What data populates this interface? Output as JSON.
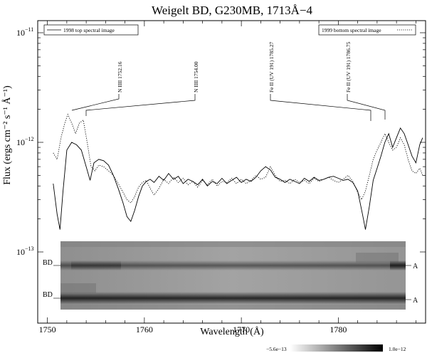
{
  "chart_data": {
    "type": "line",
    "title": "Weigelt BD, G230MB, 1713Å−4",
    "xlabel": "Wavelength (Å)",
    "ylabel": "Flux (ergs cm⁻² s⁻¹ Å⁻¹)",
    "xlim": [
      1749,
      1789
    ],
    "ylim": [
      1e-13,
      1.2e-11
    ],
    "yscale": "log",
    "grid": false,
    "xticks": [
      1750,
      1760,
      1770,
      1780
    ],
    "xtick_labels": [
      "1750",
      "1760",
      "1770",
      "1780"
    ],
    "ytick_labels": [
      {
        "value": 1e-11,
        "mantissa": "10",
        "exp": "−11"
      },
      {
        "value": 1e-12,
        "mantissa": "10",
        "exp": "−12"
      },
      {
        "value": 1e-13,
        "mantissa": "10",
        "exp": "−13"
      }
    ],
    "legend": [
      {
        "label": "1998 top spectral image",
        "style": "solid",
        "position": "top-left"
      },
      {
        "label": "1999 bottom spectral image",
        "style": "dotted",
        "position": "top-right"
      }
    ],
    "series": [
      {
        "name": "1998 top spectral image",
        "style": "solid",
        "x": [
          1750.6,
          1751.0,
          1751.3,
          1751.6,
          1752.0,
          1752.5,
          1753.0,
          1753.5,
          1754.0,
          1754.4,
          1754.8,
          1755.3,
          1755.8,
          1756.3,
          1756.8,
          1757.3,
          1757.8,
          1758.2,
          1758.6,
          1759.0,
          1759.4,
          1759.8,
          1760.2,
          1760.6,
          1761.0,
          1761.5,
          1762.0,
          1762.5,
          1763.0,
          1763.5,
          1764.0,
          1764.5,
          1765.0,
          1765.5,
          1766.0,
          1766.5,
          1767.0,
          1767.5,
          1768.0,
          1768.5,
          1769.0,
          1769.5,
          1770.0,
          1770.5,
          1771.0,
          1771.5,
          1772.0,
          1772.5,
          1773.0,
          1773.5,
          1774.0,
          1774.5,
          1775.0,
          1775.5,
          1776.0,
          1776.5,
          1777.0,
          1777.5,
          1778.0,
          1778.5,
          1779.0,
          1779.5,
          1780.0,
          1780.5,
          1781.0,
          1781.5,
          1782.0,
          1782.5,
          1782.8,
          1783.2,
          1783.6,
          1784.0,
          1784.4,
          1784.8,
          1785.2,
          1785.6,
          1786.0,
          1786.4,
          1786.8,
          1787.2,
          1787.6,
          1788.0,
          1788.4,
          1788.7
        ],
        "y": [
          4.2e-13,
          2.2e-13,
          1.6e-13,
          3.5e-13,
          8.5e-13,
          1e-12,
          9.5e-13,
          8.5e-13,
          6e-13,
          4.5e-13,
          6.5e-13,
          7e-13,
          6.8e-13,
          6.2e-13,
          5e-13,
          3.8e-13,
          2.8e-13,
          2.1e-13,
          1.9e-13,
          2.4e-13,
          3.2e-13,
          4e-13,
          4.4e-13,
          4.6e-13,
          4.3e-13,
          4.9e-13,
          4.5e-13,
          5.2e-13,
          4.6e-13,
          4.9e-13,
          4.2e-13,
          4.6e-13,
          4.4e-13,
          4.1e-13,
          4.6e-13,
          4e-13,
          4.4e-13,
          4.2e-13,
          4.7e-13,
          4.2e-13,
          4.5e-13,
          4.8e-13,
          4.3e-13,
          4.6e-13,
          4.4e-13,
          4.8e-13,
          5.5e-13,
          6e-13,
          5.6e-13,
          4.8e-13,
          4.6e-13,
          4.3e-13,
          4.6e-13,
          4.4e-13,
          4.2e-13,
          4.7e-13,
          4.4e-13,
          4.8e-13,
          4.5e-13,
          4.6e-13,
          4.8e-13,
          4.9e-13,
          4.7e-13,
          4.5e-13,
          4.6e-13,
          4.3e-13,
          3.6e-13,
          2.2e-13,
          1.6e-13,
          2.6e-13,
          4.5e-13,
          5.8e-13,
          7.5e-13,
          1e-12,
          1.2e-12,
          9e-13,
          1.1e-12,
          1.35e-12,
          1.2e-12,
          9.5e-13,
          7.5e-13,
          6.5e-13,
          9.5e-13,
          1.1e-12
        ]
      },
      {
        "name": "1999 bottom spectral image",
        "style": "dotted",
        "x": [
          1750.6,
          1751.0,
          1751.4,
          1751.8,
          1752.1,
          1752.5,
          1752.9,
          1753.3,
          1753.7,
          1754.1,
          1754.5,
          1754.9,
          1755.3,
          1755.8,
          1756.3,
          1756.8,
          1757.3,
          1757.8,
          1758.2,
          1758.6,
          1759.0,
          1759.4,
          1759.8,
          1760.2,
          1760.6,
          1761.0,
          1761.5,
          1762.0,
          1762.5,
          1763.0,
          1763.5,
          1764.0,
          1764.5,
          1765.0,
          1765.5,
          1766.0,
          1766.5,
          1767.0,
          1767.5,
          1768.0,
          1768.5,
          1769.0,
          1769.5,
          1770.0,
          1770.5,
          1771.0,
          1771.5,
          1772.0,
          1772.5,
          1773.0,
          1773.5,
          1774.0,
          1774.5,
          1775.0,
          1775.5,
          1776.0,
          1776.5,
          1777.0,
          1777.5,
          1778.0,
          1778.5,
          1779.0,
          1779.5,
          1780.0,
          1780.5,
          1781.0,
          1781.5,
          1782.0,
          1782.4,
          1782.8,
          1783.2,
          1783.6,
          1784.0,
          1784.4,
          1784.8,
          1785.2,
          1785.6,
          1786.0,
          1786.4,
          1786.8,
          1787.2,
          1787.6,
          1788.0,
          1788.4,
          1788.7
        ],
        "y": [
          8e-13,
          7e-13,
          1.1e-12,
          1.5e-12,
          1.8e-12,
          1.5e-12,
          1.2e-12,
          1.5e-12,
          1.6e-12,
          1e-12,
          6e-13,
          5.5e-13,
          6.2e-13,
          6e-13,
          5.5e-13,
          5e-13,
          4.2e-13,
          3.5e-13,
          3e-13,
          2.8e-13,
          3.2e-13,
          3.9e-13,
          4.3e-13,
          4.5e-13,
          3.8e-13,
          3.3e-13,
          3.8e-13,
          4.6e-13,
          4.2e-13,
          4.8e-13,
          4.3e-13,
          4.7e-13,
          4.1e-13,
          4.4e-13,
          3.9e-13,
          4.5e-13,
          4.1e-13,
          4.6e-13,
          4e-13,
          4.4e-13,
          4.3e-13,
          4.7e-13,
          4.2e-13,
          4.6e-13,
          4.2e-13,
          4.5e-13,
          5e-13,
          4.6e-13,
          4.8e-13,
          6e-13,
          5e-13,
          4.4e-13,
          4.5e-13,
          4.2e-13,
          4.6e-13,
          4.3e-13,
          4.5e-13,
          4.2e-13,
          4.7e-13,
          4.4e-13,
          4.6e-13,
          4.8e-13,
          4.5e-13,
          4.3e-13,
          4.6e-13,
          5e-13,
          4.4e-13,
          3.5e-13,
          3e-13,
          3.6e-13,
          5e-13,
          7e-13,
          8.5e-13,
          1e-12,
          1.2e-12,
          1e-12,
          8.5e-13,
          9e-13,
          1.1e-12,
          9.5e-13,
          7e-13,
          5.5e-13,
          5.2e-13,
          5.8e-13,
          5e-13
        ]
      }
    ],
    "annotations": [
      {
        "label": "N IIII 1752.16",
        "x": 1752.16,
        "y": 1.8e-12
      },
      {
        "label": "N IIII 1754.00",
        "x": 1754.0,
        "y": 1.6e-12
      },
      {
        "label": "Fe II (UV 191) 1785.27",
        "x": 1785.27,
        "y": 1.5e-12
      },
      {
        "label": "Fe II (UV 191) 1786.75",
        "x": 1786.75,
        "y": 1.6e-12
      }
    ],
    "spectral_image": {
      "left_labels": [
        "BD",
        "BD"
      ],
      "right_labels": [
        "A",
        "A"
      ],
      "colorbar_min": "−5.6e−13",
      "colorbar_max": "1.0e−12"
    }
  }
}
